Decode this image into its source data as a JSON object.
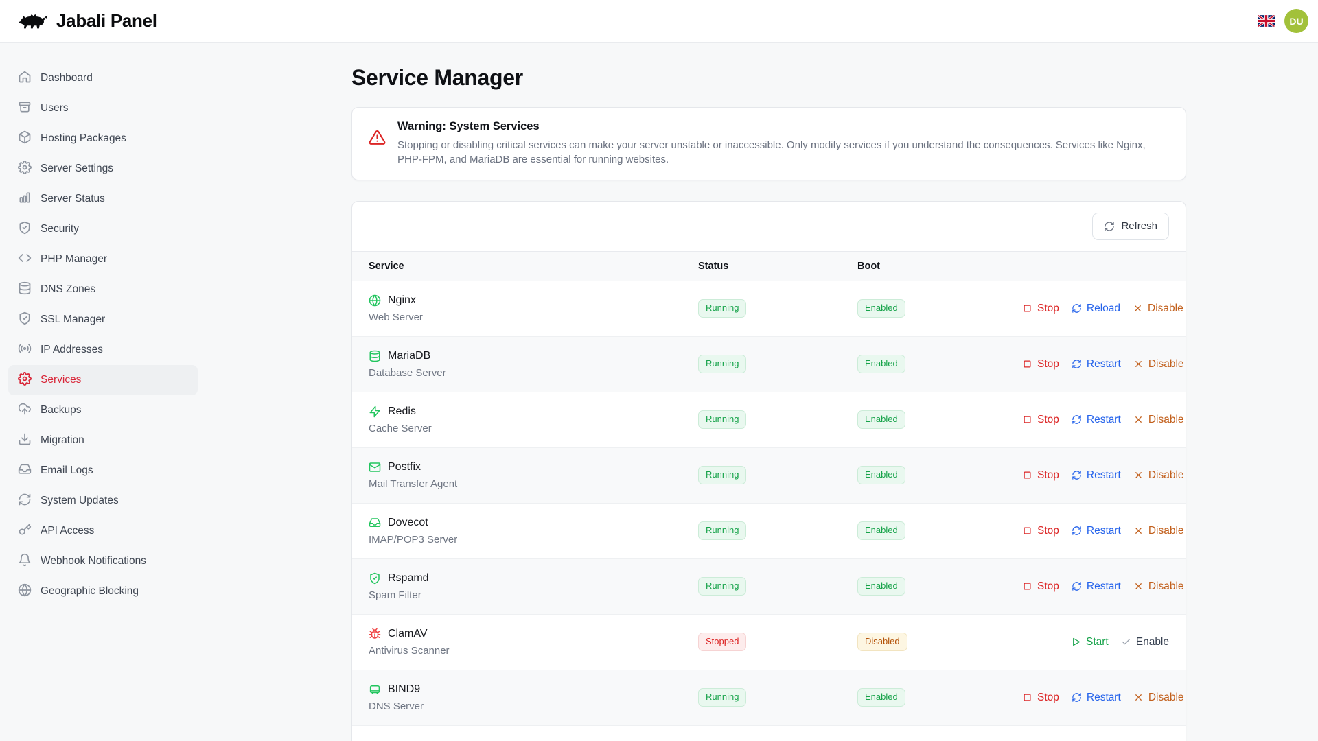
{
  "app": {
    "title": "Jabali Panel",
    "avatar_initials": "DU",
    "language_flag": "uk-flag"
  },
  "colors": {
    "accent": "#d92638",
    "avatar_bg": "#a2c13a",
    "success": "#16a34a",
    "danger": "#dc2626",
    "warning": "#b45309",
    "link_blue": "#2563eb",
    "disable_orange": "#c2601d"
  },
  "sidebar": {
    "items": [
      {
        "label": "Dashboard",
        "icon": "home-icon",
        "active": false
      },
      {
        "label": "Users",
        "icon": "archive-icon",
        "active": false
      },
      {
        "label": "Hosting Packages",
        "icon": "package-icon",
        "active": false
      },
      {
        "label": "Server Settings",
        "icon": "gear-icon",
        "active": false
      },
      {
        "label": "Server Status",
        "icon": "bar-chart-icon",
        "active": false
      },
      {
        "label": "Security",
        "icon": "shield-check-icon",
        "active": false
      },
      {
        "label": "PHP Manager",
        "icon": "code-icon",
        "active": false
      },
      {
        "label": "DNS Zones",
        "icon": "database-icon",
        "active": false
      },
      {
        "label": "SSL Manager",
        "icon": "shield-check-icon",
        "active": false
      },
      {
        "label": "IP Addresses",
        "icon": "radio-waves-icon",
        "active": false
      },
      {
        "label": "Services",
        "icon": "gear-icon",
        "active": true
      },
      {
        "label": "Backups",
        "icon": "cloud-upload-icon",
        "active": false
      },
      {
        "label": "Migration",
        "icon": "download-icon",
        "active": false
      },
      {
        "label": "Email Logs",
        "icon": "inbox-icon",
        "active": false
      },
      {
        "label": "System Updates",
        "icon": "refresh-icon",
        "active": false
      },
      {
        "label": "API Access",
        "icon": "key-icon",
        "active": false
      },
      {
        "label": "Webhook Notifications",
        "icon": "bell-icon",
        "active": false
      },
      {
        "label": "Geographic Blocking",
        "icon": "globe-icon",
        "active": false
      }
    ]
  },
  "page": {
    "title": "Service Manager"
  },
  "warning": {
    "title": "Warning: System Services",
    "body": "Stopping or disabling critical services can make your server unstable or inaccessible. Only modify services if you understand the consequences. Services like Nginx, PHP-FPM, and MariaDB are essential for running websites."
  },
  "toolbar": {
    "refresh_label": "Refresh"
  },
  "table": {
    "columns": [
      "Service",
      "Status",
      "Boot"
    ],
    "rows": [
      {
        "name": "Nginx",
        "description": "Web Server",
        "icon": "globe-icon",
        "icon_color": "#22c55e",
        "status": "Running",
        "boot": "Enabled",
        "actions": [
          {
            "label": "Stop",
            "icon": "stop-square-icon",
            "color": "#dc2626"
          },
          {
            "label": "Reload",
            "icon": "refresh-icon",
            "color": "#2563eb"
          },
          {
            "label": "Disable",
            "icon": "x-icon",
            "color": "#c2601d"
          }
        ]
      },
      {
        "name": "MariaDB",
        "description": "Database Server",
        "icon": "database-icon",
        "icon_color": "#22c55e",
        "status": "Running",
        "boot": "Enabled",
        "actions": [
          {
            "label": "Stop",
            "icon": "stop-square-icon",
            "color": "#dc2626"
          },
          {
            "label": "Restart",
            "icon": "refresh-icon",
            "color": "#2563eb"
          },
          {
            "label": "Disable",
            "icon": "x-icon",
            "color": "#c2601d"
          }
        ]
      },
      {
        "name": "Redis",
        "description": "Cache Server",
        "icon": "zap-icon",
        "icon_color": "#22c55e",
        "status": "Running",
        "boot": "Enabled",
        "actions": [
          {
            "label": "Stop",
            "icon": "stop-square-icon",
            "color": "#dc2626"
          },
          {
            "label": "Restart",
            "icon": "refresh-icon",
            "color": "#2563eb"
          },
          {
            "label": "Disable",
            "icon": "x-icon",
            "color": "#c2601d"
          }
        ]
      },
      {
        "name": "Postfix",
        "description": "Mail Transfer Agent",
        "icon": "mail-icon",
        "icon_color": "#22c55e",
        "status": "Running",
        "boot": "Enabled",
        "actions": [
          {
            "label": "Stop",
            "icon": "stop-square-icon",
            "color": "#dc2626"
          },
          {
            "label": "Restart",
            "icon": "refresh-icon",
            "color": "#2563eb"
          },
          {
            "label": "Disable",
            "icon": "x-icon",
            "color": "#c2601d"
          }
        ]
      },
      {
        "name": "Dovecot",
        "description": "IMAP/POP3 Server",
        "icon": "inbox-icon",
        "icon_color": "#22c55e",
        "status": "Running",
        "boot": "Enabled",
        "actions": [
          {
            "label": "Stop",
            "icon": "stop-square-icon",
            "color": "#dc2626"
          },
          {
            "label": "Restart",
            "icon": "refresh-icon",
            "color": "#2563eb"
          },
          {
            "label": "Disable",
            "icon": "x-icon",
            "color": "#c2601d"
          }
        ]
      },
      {
        "name": "Rspamd",
        "description": "Spam Filter",
        "icon": "shield-check-icon",
        "icon_color": "#22c55e",
        "status": "Running",
        "boot": "Enabled",
        "actions": [
          {
            "label": "Stop",
            "icon": "stop-square-icon",
            "color": "#dc2626"
          },
          {
            "label": "Restart",
            "icon": "refresh-icon",
            "color": "#2563eb"
          },
          {
            "label": "Disable",
            "icon": "x-icon",
            "color": "#c2601d"
          }
        ]
      },
      {
        "name": "ClamAV",
        "description": "Antivirus Scanner",
        "icon": "bug-icon",
        "icon_color": "#ef4444",
        "status": "Stopped",
        "boot": "Disabled",
        "actions": [
          {
            "label": "Start",
            "icon": "play-icon",
            "color": "#16a34a"
          },
          {
            "label": "Enable",
            "icon": "check-icon",
            "color": "#374151",
            "icon_color": "#9ca3af"
          }
        ]
      },
      {
        "name": "BIND9",
        "description": "DNS Server",
        "icon": "server-icon",
        "icon_color": "#22c55e",
        "status": "Running",
        "boot": "Enabled",
        "actions": [
          {
            "label": "Stop",
            "icon": "stop-square-icon",
            "color": "#dc2626"
          },
          {
            "label": "Restart",
            "icon": "refresh-icon",
            "color": "#2563eb"
          },
          {
            "label": "Disable",
            "icon": "x-icon",
            "color": "#c2601d"
          }
        ]
      }
    ]
  }
}
